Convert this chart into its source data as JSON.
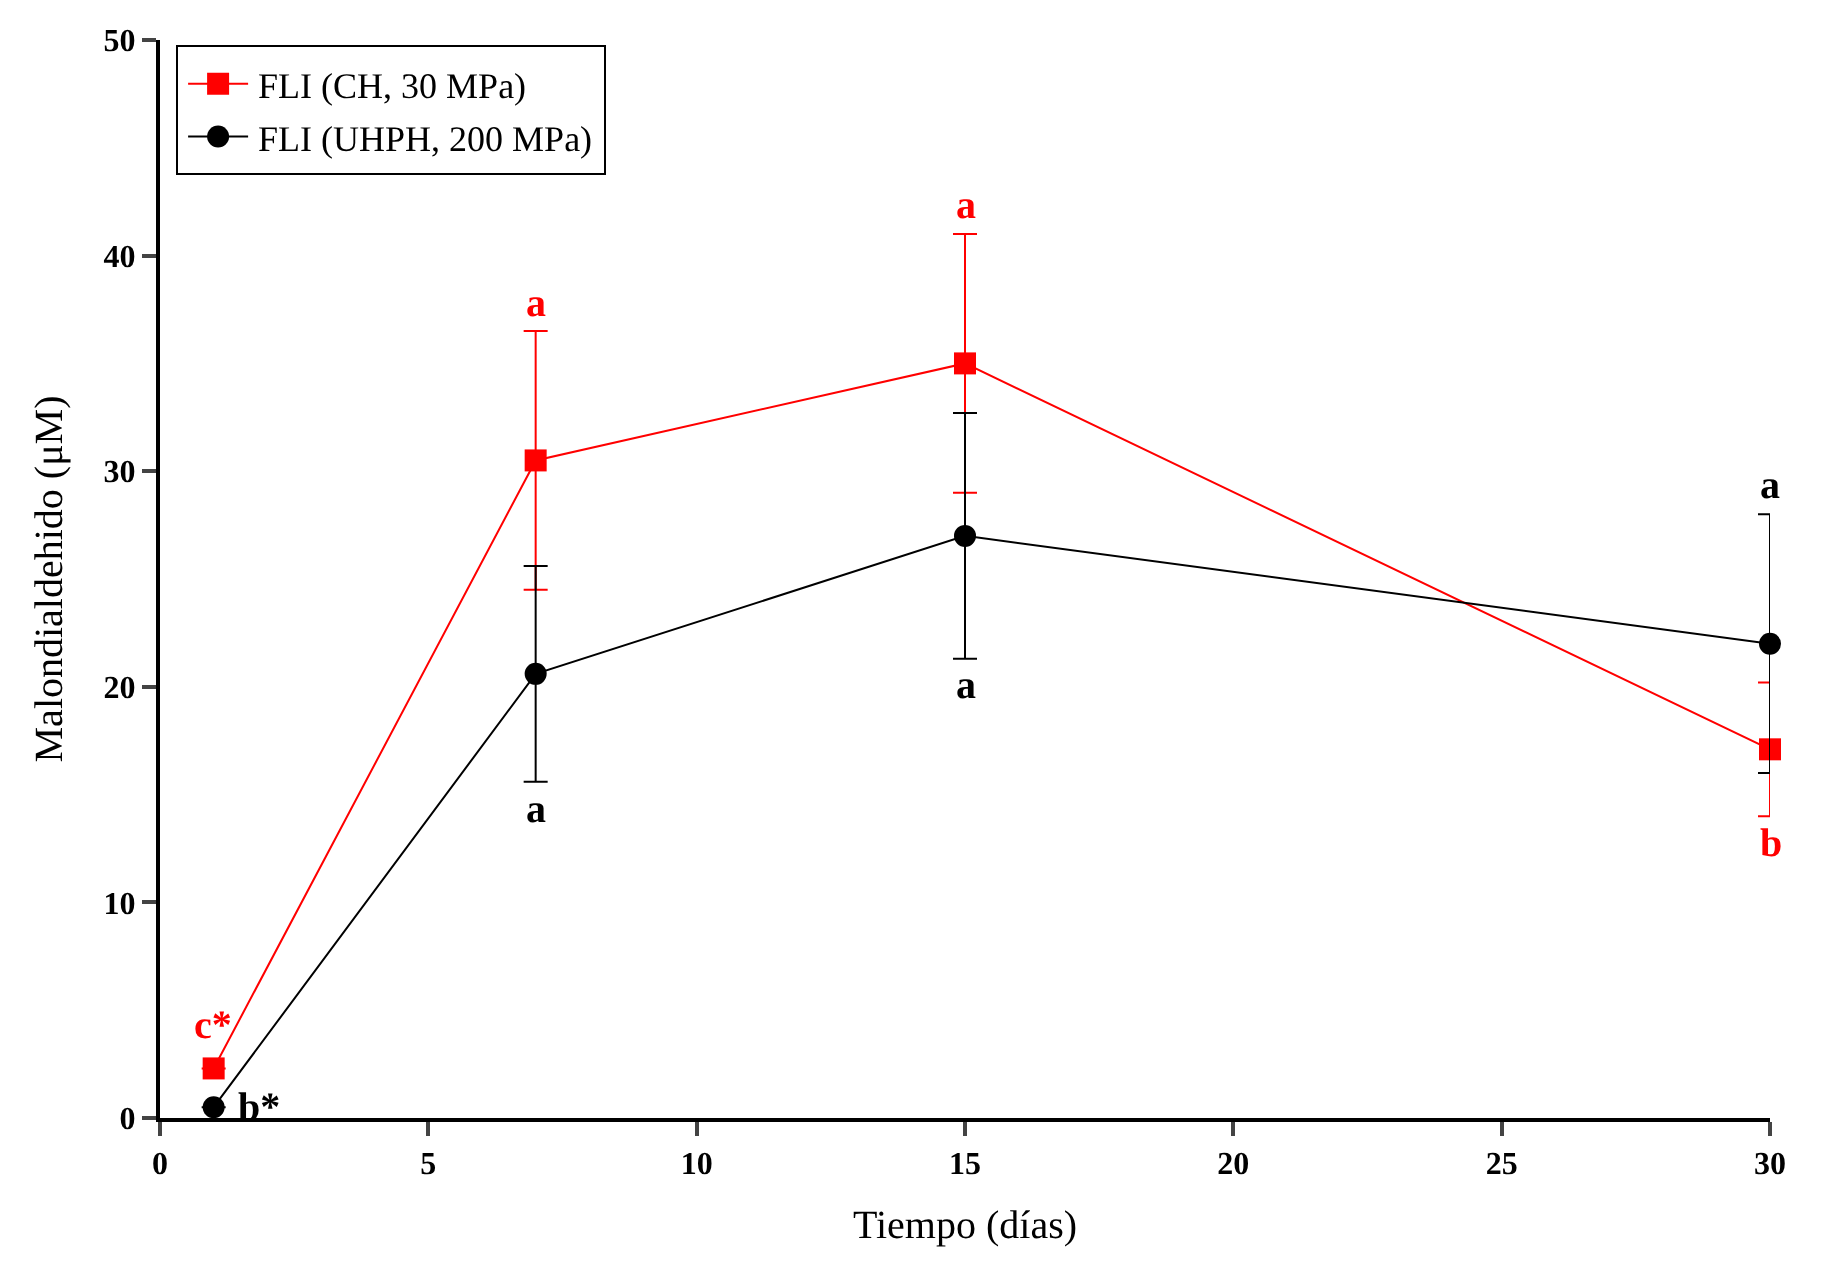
{
  "chart_data": {
    "type": "line",
    "xlabel": "Tiempo (días)",
    "ylabel": "Malondialdehido (μM)",
    "x": [
      1,
      7,
      15,
      30
    ],
    "series": [
      {
        "name": "FLI (CH, 30 MPa)",
        "color": "#ff0000",
        "values": [
          2.3,
          30.5,
          35.0,
          17.1
        ],
        "errors": [
          null,
          6.0,
          6.0,
          3.1
        ],
        "marker": "square"
      },
      {
        "name": "FLI (UHPH, 200 MPa)",
        "color": "#000000",
        "values": [
          0.5,
          20.6,
          27.0,
          22.0
        ],
        "errors": [
          null,
          5.0,
          5.7,
          6.0
        ],
        "marker": "circle"
      }
    ],
    "annotations": [
      {
        "text": "c*",
        "x": 1,
        "y": 2.3
      },
      {
        "text": "b*",
        "x": 1,
        "y": 0.5
      },
      {
        "text": "a",
        "x": 7,
        "y": 36.5
      },
      {
        "text": "a",
        "x": 7,
        "y": 15.6
      },
      {
        "text": "a",
        "x": 15,
        "y": 41.0
      },
      {
        "text": "a",
        "x": 15,
        "y": 21.3
      },
      {
        "text": "a",
        "x": 30,
        "y": 28.0
      },
      {
        "text": "b",
        "x": 30,
        "y": 14.0
      }
    ],
    "xlim": [
      0,
      30
    ],
    "xticks": [
      0,
      5,
      10,
      15,
      20,
      25,
      30
    ],
    "ylim": [
      0,
      50
    ],
    "yticks": [
      0,
      10,
      20,
      30,
      40,
      50
    ],
    "legend": "top left",
    "line_style": "solid"
  }
}
